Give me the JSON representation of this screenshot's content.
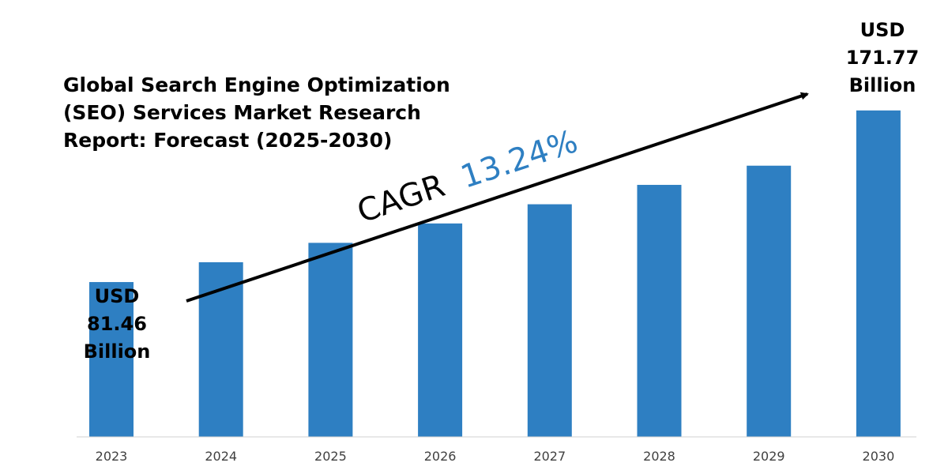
{
  "title": {
    "lines": [
      "Global Search Engine Optimization",
      "(SEO) Services Market Research",
      "Report: Forecast (2025-2030)"
    ]
  },
  "cagr": {
    "label": "CAGR",
    "value": "13.24%"
  },
  "callouts": {
    "start": [
      "USD",
      "81.46",
      "Billion"
    ],
    "end": [
      "USD",
      "171.77",
      "Billion"
    ]
  },
  "colors": {
    "bar": "#2e7fc2",
    "cagr_value": "#2e7fc2",
    "text": "#000000",
    "axis": "#d0d0d0"
  },
  "chart_data": {
    "type": "bar",
    "categories": [
      "2023",
      "2024",
      "2025",
      "2026",
      "2027",
      "2028",
      "2029",
      "2030"
    ],
    "values": [
      81.46,
      91.9,
      102.1,
      112.3,
      122.4,
      132.6,
      142.7,
      171.77
    ],
    "title": "Global Search Engine Optimization (SEO) Services Market Research Report: Forecast (2025-2030)",
    "xlabel": "",
    "ylabel": "",
    "ylim": [
      0,
      180
    ],
    "grid": false,
    "legend": "none",
    "annotations": [
      "USD 81.46 Billion",
      "USD 171.77 Billion",
      "CAGR 13.24%"
    ]
  }
}
